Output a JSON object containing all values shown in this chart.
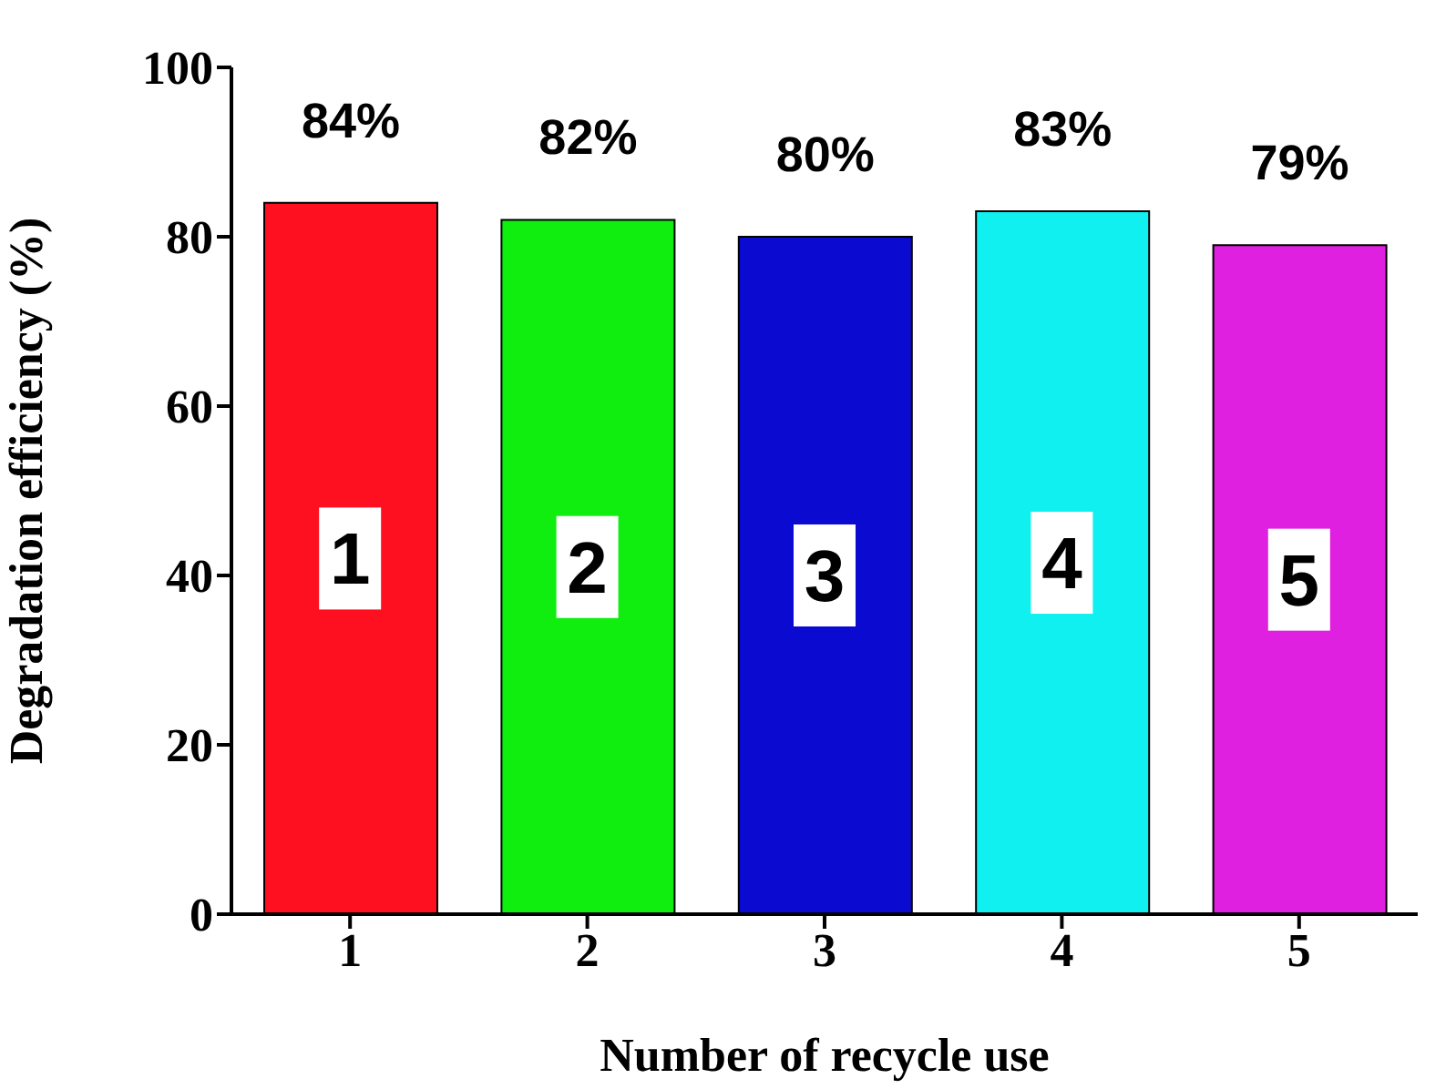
{
  "chart_data": {
    "type": "bar",
    "xlabel": "Number of recycle use",
    "ylabel": "Degradation  efficiency (%)",
    "categories": [
      "1",
      "2",
      "3",
      "4",
      "5"
    ],
    "values": [
      84,
      82,
      80,
      83,
      79
    ],
    "value_labels": [
      "84%",
      "82%",
      "80%",
      "83%",
      "79%"
    ],
    "colors": [
      "#ff1020",
      "#10ee10",
      "#0a0ad0",
      "#10f0f0",
      "#e020e0"
    ],
    "ylim": [
      0,
      100
    ],
    "yticks": [
      0,
      20,
      40,
      60,
      80,
      100
    ],
    "grid": false,
    "legend": false,
    "annotations": [
      "1",
      "2",
      "3",
      "4",
      "5"
    ]
  }
}
